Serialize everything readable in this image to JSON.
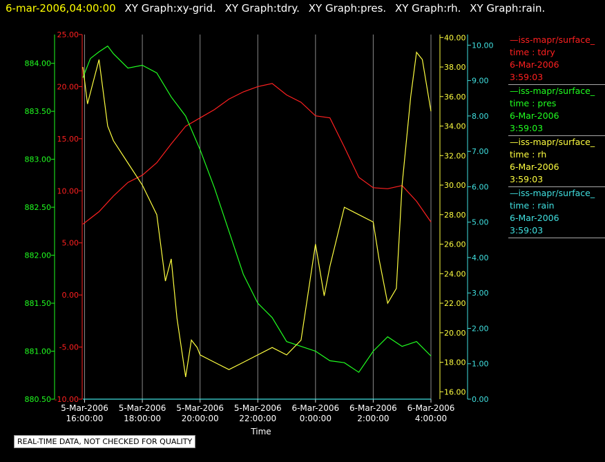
{
  "header": {
    "timestamp": "6-mar-2006,04:00:00",
    "titles": [
      "XY Graph:xy-grid.",
      "XY Graph:tdry.",
      "XY Graph:pres.",
      "XY Graph:rh.",
      "XY Graph:rain."
    ]
  },
  "legend": [
    {
      "source": "—iss-mapr/surface_",
      "var": "time : tdry",
      "date": "6-Mar-2006",
      "time": "3:59:03",
      "color": "#ff2020"
    },
    {
      "source": "—iss-mapr/surface_",
      "var": "time : pres",
      "date": "6-Mar-2006",
      "time": "3:59:03",
      "color": "#20ff20"
    },
    {
      "source": "—iss-mapr/surface_",
      "var": "time : rh",
      "date": "6-Mar-2006",
      "time": "3:59:03",
      "color": "#ffff40"
    },
    {
      "source": "—iss-mapr/surface_",
      "var": "time : rain",
      "date": "6-Mar-2006",
      "time": "3:59:03",
      "color": "#40e0e0"
    }
  ],
  "notice": "REAL-TIME DATA, NOT CHECKED FOR QUALITY",
  "chart_data": {
    "type": "line",
    "xlabel": "Time",
    "x_ticks": [
      {
        "date": "5-Mar-2006",
        "time": "16:00:00",
        "hour": 16
      },
      {
        "date": "5-Mar-2006",
        "time": "18:00:00",
        "hour": 18
      },
      {
        "date": "5-Mar-2006",
        "time": "20:00:00",
        "hour": 20
      },
      {
        "date": "5-Mar-2006",
        "time": "22:00:00",
        "hour": 22
      },
      {
        "date": "6-Mar-2006",
        "time": "0:00:00",
        "hour": 24
      },
      {
        "date": "6-Mar-2006",
        "time": "2:00:00",
        "hour": 26
      },
      {
        "date": "6-Mar-2006",
        "time": "4:00:00",
        "hour": 28
      }
    ],
    "xlim": [
      15.94,
      28.0
    ],
    "grid": "vertical at ticks",
    "axes": {
      "pres": {
        "color": "#20ff20",
        "ylim": [
          880.5,
          884.3
        ],
        "ticks": [
          "880.50",
          "881.00",
          "881.50",
          "882.00",
          "882.50",
          "883.00",
          "883.50",
          "884.00"
        ]
      },
      "tdry": {
        "color": "#ff2020",
        "ylim": [
          -10,
          25
        ],
        "ticks": [
          "-10.00",
          "-5.00",
          "0.00",
          "5.00",
          "10.00",
          "15.00",
          "20.00",
          "25.00"
        ]
      },
      "rh": {
        "color": "#ffff40",
        "ylim": [
          15.5,
          40.2
        ],
        "ticks": [
          "16.00",
          "18.00",
          "20.00",
          "22.00",
          "24.00",
          "26.00",
          "28.00",
          "30.00",
          "32.00",
          "34.00",
          "36.00",
          "38.00",
          "40.00"
        ]
      },
      "rain": {
        "color": "#40e0e0",
        "ylim": [
          0,
          10.3
        ],
        "ticks": [
          "0.00",
          "1.00",
          "2.00",
          "3.00",
          "4.00",
          "5.00",
          "6.00",
          "7.00",
          "8.00",
          "9.00",
          "10.00"
        ]
      }
    },
    "series": [
      {
        "name": "tdry",
        "axis": "tdry",
        "color": "#ff2020",
        "x": [
          15.94,
          16.5,
          17.0,
          17.5,
          18.0,
          18.5,
          19.0,
          19.5,
          20.0,
          20.5,
          21.0,
          21.5,
          22.0,
          22.5,
          23.0,
          23.5,
          24.0,
          24.5,
          25.0,
          25.5,
          26.0,
          26.5,
          27.0,
          27.5,
          28.0
        ],
        "y": [
          6.8,
          8.0,
          9.5,
          10.8,
          11.5,
          12.7,
          14.5,
          16.2,
          17.0,
          17.8,
          18.8,
          19.5,
          20.0,
          20.3,
          19.2,
          18.5,
          17.2,
          17.0,
          14.2,
          11.3,
          10.3,
          10.2,
          10.5,
          9.0,
          7.0
        ]
      },
      {
        "name": "pres",
        "axis": "pres",
        "color": "#20ff20",
        "x": [
          15.94,
          16.2,
          16.5,
          16.8,
          17.0,
          17.5,
          18.0,
          18.5,
          19.0,
          19.5,
          20.0,
          20.5,
          21.0,
          21.5,
          22.0,
          22.5,
          23.0,
          23.5,
          24.0,
          24.5,
          25.0,
          25.5,
          26.0,
          26.5,
          27.0,
          27.5,
          28.0
        ],
        "y": [
          883.85,
          884.05,
          884.12,
          884.18,
          884.1,
          883.95,
          883.98,
          883.9,
          883.65,
          883.45,
          883.1,
          882.7,
          882.25,
          881.8,
          881.5,
          881.35,
          881.1,
          881.05,
          881.0,
          880.9,
          880.88,
          880.78,
          881.0,
          881.15,
          881.05,
          881.1,
          880.95
        ]
      },
      {
        "name": "rh",
        "axis": "rh",
        "color": "#ffff40",
        "x": [
          15.94,
          16.1,
          16.3,
          16.5,
          16.8,
          17.0,
          17.5,
          18.0,
          18.5,
          18.8,
          19.0,
          19.2,
          19.5,
          19.7,
          19.9,
          20.0,
          20.5,
          21.0,
          21.5,
          22.0,
          22.5,
          23.0,
          23.5,
          24.0,
          24.3,
          24.5,
          25.0,
          25.5,
          26.0,
          26.2,
          26.5,
          26.8,
          27.0,
          27.3,
          27.5,
          27.7,
          28.0
        ],
        "y": [
          38.0,
          35.5,
          37.0,
          38.5,
          34.0,
          33.0,
          31.5,
          30.0,
          28.0,
          23.5,
          25.0,
          21.0,
          17.0,
          19.5,
          19.0,
          18.5,
          18.0,
          17.5,
          18.0,
          18.5,
          19.0,
          18.5,
          19.5,
          26.0,
          22.5,
          24.5,
          28.5,
          28.0,
          27.5,
          25.0,
          22.0,
          23.0,
          30.0,
          36.0,
          39.0,
          38.5,
          35.0
        ]
      },
      {
        "name": "rain",
        "axis": "rain",
        "color": "#40e0e0",
        "x": [
          15.94,
          28.0
        ],
        "y": [
          0.0,
          0.0
        ]
      }
    ]
  }
}
